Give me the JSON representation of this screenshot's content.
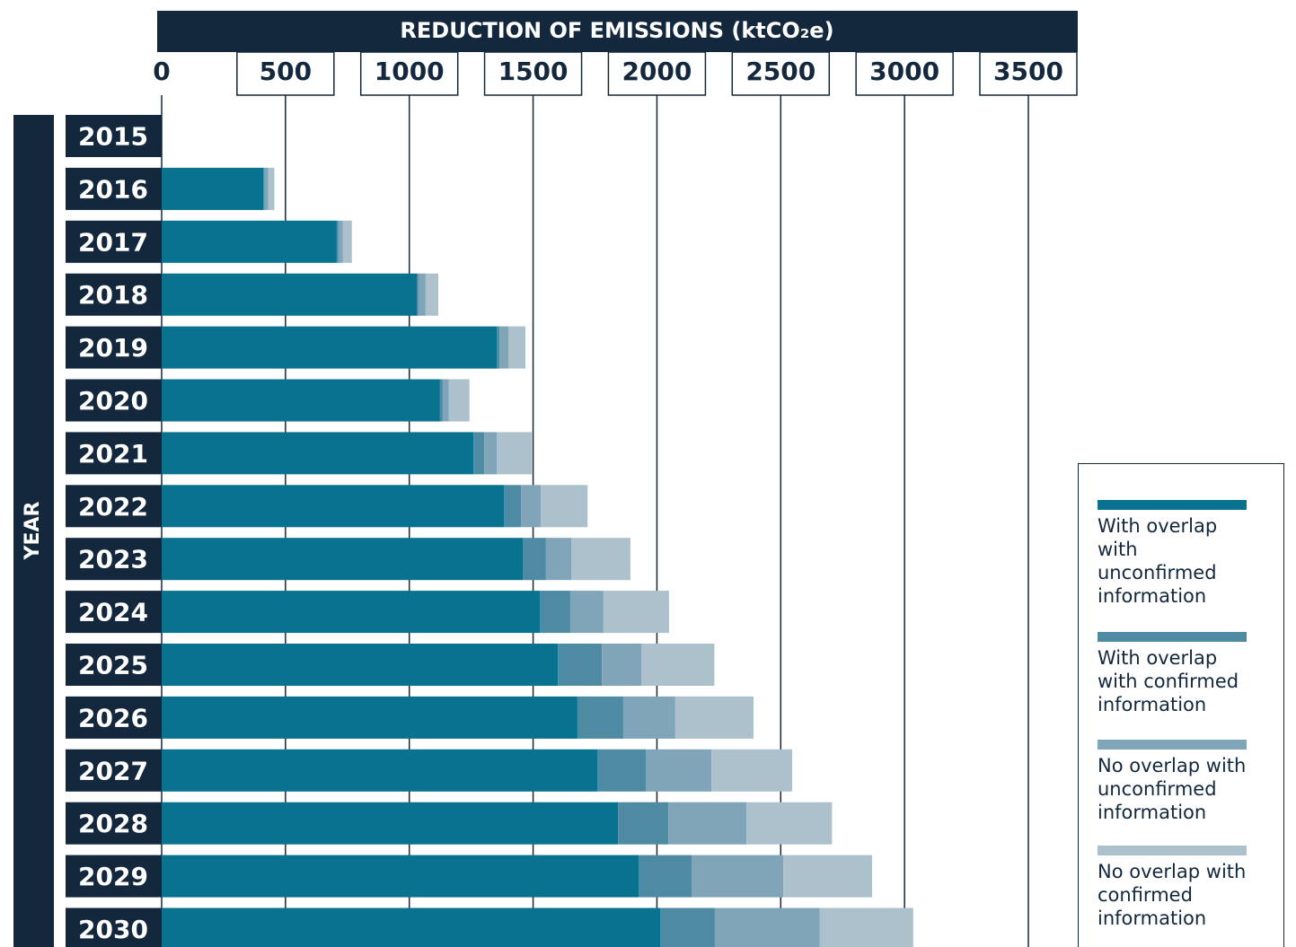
{
  "chart_data": {
    "type": "stacked_barh",
    "title": "REDUCTION OF EMISSIONS (ktCO₂e)",
    "ylabel": "YEAR",
    "categories": [
      "2015",
      "2016",
      "2017",
      "2018",
      "2019",
      "2020",
      "2021",
      "2022",
      "2023",
      "2024",
      "2025",
      "2026",
      "2027",
      "2028",
      "2029",
      "2030"
    ],
    "series": [
      {
        "name": "With overlap with unconfirmed information",
        "color": "#08728f",
        "values": [
          0,
          410,
          707,
          1030,
          1353,
          1124,
          1259,
          1382,
          1458,
          1527,
          1600,
          1679,
          1759,
          1843,
          1926,
          2013
        ]
      },
      {
        "name": "With overlap with confirmed information",
        "color": "#4f8aa3",
        "values": [
          0,
          5,
          7,
          7,
          11,
          11,
          44,
          69,
          94,
          123,
          178,
          185,
          196,
          203,
          214,
          221
        ]
      },
      {
        "name": "No overlap with unconfirmed information",
        "color": "#80a4b8",
        "values": [
          0,
          15,
          18,
          29,
          36,
          25,
          51,
          80,
          102,
          134,
          160,
          210,
          265,
          316,
          370,
          424
        ]
      },
      {
        "name": "No overlap with confirmed information",
        "color": "#adc1cd",
        "values": [
          0,
          25,
          36,
          51,
          69,
          83,
          141,
          189,
          239,
          265,
          294,
          316,
          326,
          345,
          359,
          377
        ]
      }
    ],
    "xlim": [
      0,
      3500
    ],
    "xticks": [
      0,
      500,
      1000,
      1500,
      2000,
      2500,
      3000,
      3500
    ],
    "grid": true
  }
}
